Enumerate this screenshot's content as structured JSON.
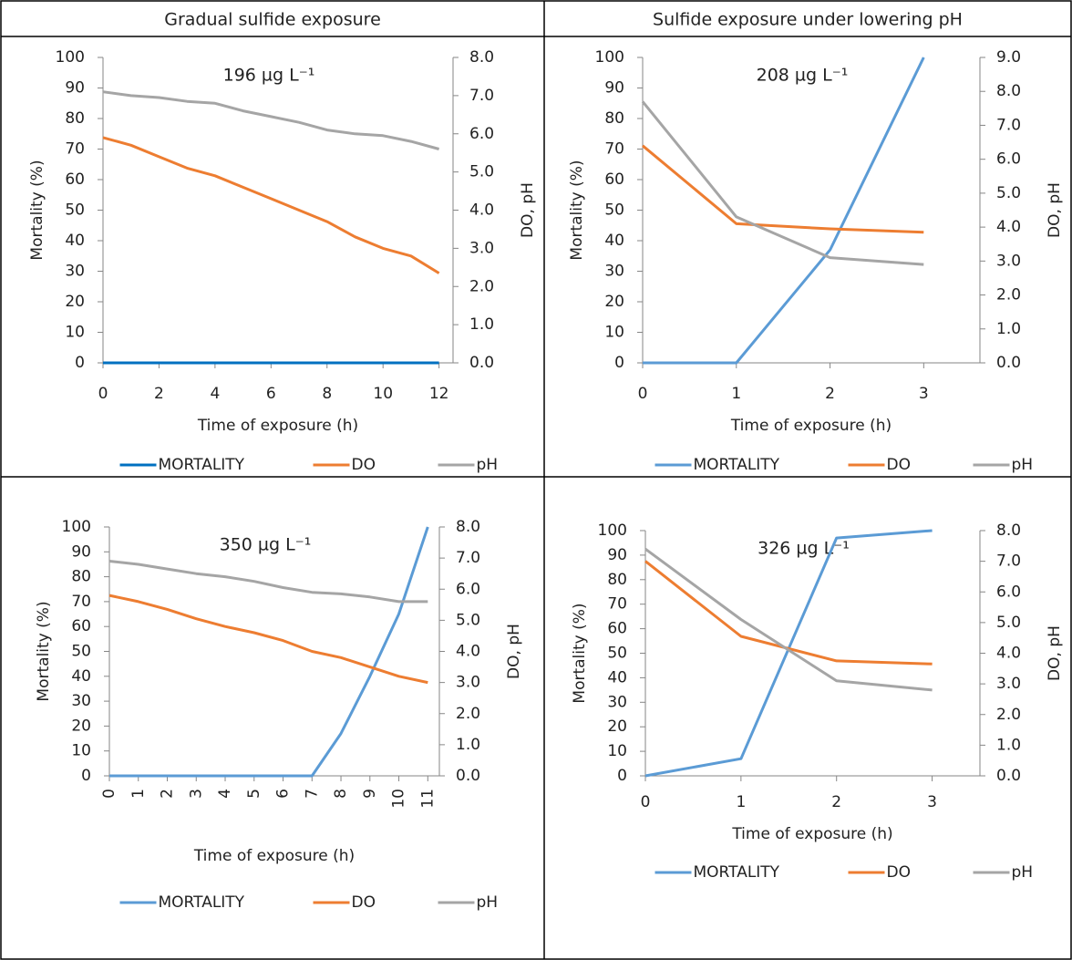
{
  "columns": [
    "Gradual sulfide exposure",
    "Sulfide exposure under lowering pH"
  ],
  "chart_data": [
    {
      "type": "line",
      "title": "196 µg L⁻¹",
      "x_label": "Time of exposure (h)",
      "y_label": "Mortality (%)",
      "y2_label": "DO, pH",
      "x": [
        0,
        1,
        2,
        3,
        4,
        5,
        6,
        7,
        8,
        9,
        10,
        11,
        12
      ],
      "xlim": [
        0,
        12.5
      ],
      "xticks": [
        0,
        2,
        4,
        6,
        8,
        10,
        12
      ],
      "ylim": [
        0,
        100
      ],
      "yticks": [
        0,
        10,
        20,
        30,
        40,
        50,
        60,
        70,
        80,
        90,
        100
      ],
      "y2lim": [
        0,
        8
      ],
      "y2ticks": [
        {
          "value": 0,
          "label": "0.0"
        },
        {
          "value": 1,
          "label": "1.0"
        },
        {
          "value": 2,
          "label": "2.0"
        },
        {
          "value": 3,
          "label": "3.0"
        },
        {
          "value": 4,
          "label": "4.0"
        },
        {
          "value": 5,
          "label": "5.0"
        },
        {
          "value": 6,
          "label": "6.0"
        },
        {
          "value": 7,
          "label": "7.0"
        },
        {
          "value": 8,
          "label": "8.0"
        }
      ],
      "legend": "bottom",
      "series": [
        {
          "name": "MORTALITY",
          "color": "#0070c0",
          "axis": "y",
          "values": [
            0,
            0,
            0,
            0,
            0,
            0,
            0,
            0,
            0,
            0,
            0,
            0,
            0
          ]
        },
        {
          "name": "DO",
          "color": "#ed7d31",
          "axis": "y2",
          "values": [
            5.9,
            5.7,
            5.4,
            5.1,
            4.9,
            4.6,
            4.3,
            4.0,
            3.7,
            3.3,
            3.0,
            2.8,
            2.35
          ]
        },
        {
          "name": "pH",
          "color": "#a5a5a5",
          "axis": "y2",
          "values": [
            7.1,
            7.0,
            6.95,
            6.85,
            6.8,
            6.6,
            6.45,
            6.3,
            6.1,
            6.0,
            5.95,
            5.8,
            5.6
          ]
        }
      ]
    },
    {
      "type": "line",
      "title": "208 µg L⁻¹",
      "x_label": "Time of exposure (h)",
      "y_label": "Mortality (%)",
      "y2_label": "DO, pH",
      "x": [
        0,
        1,
        2,
        3
      ],
      "xlim": [
        0,
        3.6
      ],
      "xticks": [
        0,
        1,
        2,
        3
      ],
      "ylim": [
        0,
        100
      ],
      "yticks": [
        0,
        10,
        20,
        30,
        40,
        50,
        60,
        70,
        80,
        90,
        100
      ],
      "y2lim": [
        0,
        9
      ],
      "y2ticks": [
        {
          "value": 0,
          "label": "0.0"
        },
        {
          "value": 1,
          "label": "1.0"
        },
        {
          "value": 2,
          "label": "2.0"
        },
        {
          "value": 3,
          "label": "3.0"
        },
        {
          "value": 4,
          "label": "4.0"
        },
        {
          "value": 5,
          "label": "5.0"
        },
        {
          "value": 6,
          "label": "6.0"
        },
        {
          "value": 7,
          "label": "7.0"
        },
        {
          "value": 8,
          "label": "8.0"
        },
        {
          "value": 9,
          "label": "9.0"
        }
      ],
      "legend": "bottom",
      "series": [
        {
          "name": "MORTALITY",
          "color": "#5b9bd5",
          "axis": "y",
          "values": [
            0,
            0,
            37,
            100
          ]
        },
        {
          "name": "DO",
          "color": "#ed7d31",
          "axis": "y2",
          "values": [
            6.4,
            4.1,
            3.95,
            3.85
          ]
        },
        {
          "name": "pH",
          "color": "#a5a5a5",
          "axis": "y2",
          "values": [
            7.7,
            4.3,
            3.1,
            2.9
          ]
        }
      ]
    },
    {
      "type": "line",
      "title": "350 µg L⁻¹",
      "x_label": "Time of exposure (h)",
      "y_label": "Mortality (%)",
      "y2_label": "DO, pH",
      "x": [
        0,
        1,
        2,
        3,
        4,
        5,
        6,
        7,
        8,
        9,
        10,
        11
      ],
      "xlim": [
        0,
        11.4
      ],
      "xticks": [
        0,
        1,
        2,
        3,
        4,
        5,
        6,
        7,
        8,
        9,
        10,
        11
      ],
      "rotate_xticks": true,
      "ylim": [
        0,
        100
      ],
      "yticks": [
        0,
        10,
        20,
        30,
        40,
        50,
        60,
        70,
        80,
        90,
        100
      ],
      "y2lim": [
        0,
        8
      ],
      "y2ticks": [
        {
          "value": 0,
          "label": "0.0"
        },
        {
          "value": 1,
          "label": "1.0"
        },
        {
          "value": 2,
          "label": "2.0"
        },
        {
          "value": 3,
          "label": "3.0"
        },
        {
          "value": 4,
          "label": "4.0"
        },
        {
          "value": 5,
          "label": "5.0"
        },
        {
          "value": 6,
          "label": "6.0"
        },
        {
          "value": 7,
          "label": "7.0"
        },
        {
          "value": 8,
          "label": "8.0"
        }
      ],
      "legend": "bottom",
      "series": [
        {
          "name": "MORTALITY",
          "color": "#5b9bd5",
          "axis": "y",
          "values": [
            0,
            0,
            0,
            0,
            0,
            0,
            0,
            0,
            17,
            40,
            65,
            100
          ]
        },
        {
          "name": "DO",
          "color": "#ed7d31",
          "axis": "y2",
          "values": [
            5.8,
            5.6,
            5.35,
            5.05,
            4.8,
            4.6,
            4.35,
            4.0,
            3.8,
            3.5,
            3.2,
            3.0
          ]
        },
        {
          "name": "pH",
          "color": "#a5a5a5",
          "axis": "y2",
          "values": [
            6.9,
            6.8,
            6.65,
            6.5,
            6.4,
            6.25,
            6.05,
            5.9,
            5.85,
            5.75,
            5.6,
            5.6
          ]
        }
      ]
    },
    {
      "type": "line",
      "title": "326 µg L⁻¹",
      "x_label": "Time of exposure (h)",
      "y_label": "Mortality (%)",
      "y2_label": "DO, pH",
      "x": [
        0,
        1,
        2,
        3
      ],
      "xlim": [
        0,
        3.5
      ],
      "xticks": [
        0,
        1,
        2,
        3
      ],
      "ylim": [
        0,
        100
      ],
      "yticks": [
        0,
        10,
        20,
        30,
        40,
        50,
        60,
        70,
        80,
        90,
        100
      ],
      "y2lim": [
        0,
        8
      ],
      "y2ticks": [
        {
          "value": 0,
          "label": "0.0"
        },
        {
          "value": 1,
          "label": "1.0"
        },
        {
          "value": 2,
          "label": "2.0"
        },
        {
          "value": 3,
          "label": "3.0"
        },
        {
          "value": 4,
          "label": "4.0"
        },
        {
          "value": 5,
          "label": "5.0"
        },
        {
          "value": 6,
          "label": "6.0"
        },
        {
          "value": 7,
          "label": "7.0"
        },
        {
          "value": 8,
          "label": "8.0"
        }
      ],
      "legend": "bottom",
      "series": [
        {
          "name": "MORTALITY",
          "color": "#5b9bd5",
          "axis": "y",
          "values": [
            0,
            7,
            97,
            100
          ]
        },
        {
          "name": "DO",
          "color": "#ed7d31",
          "axis": "y2",
          "values": [
            7.0,
            4.55,
            3.75,
            3.65
          ]
        },
        {
          "name": "pH",
          "color": "#a5a5a5",
          "axis": "y2",
          "values": [
            7.4,
            5.1,
            3.1,
            2.8
          ]
        }
      ]
    }
  ]
}
